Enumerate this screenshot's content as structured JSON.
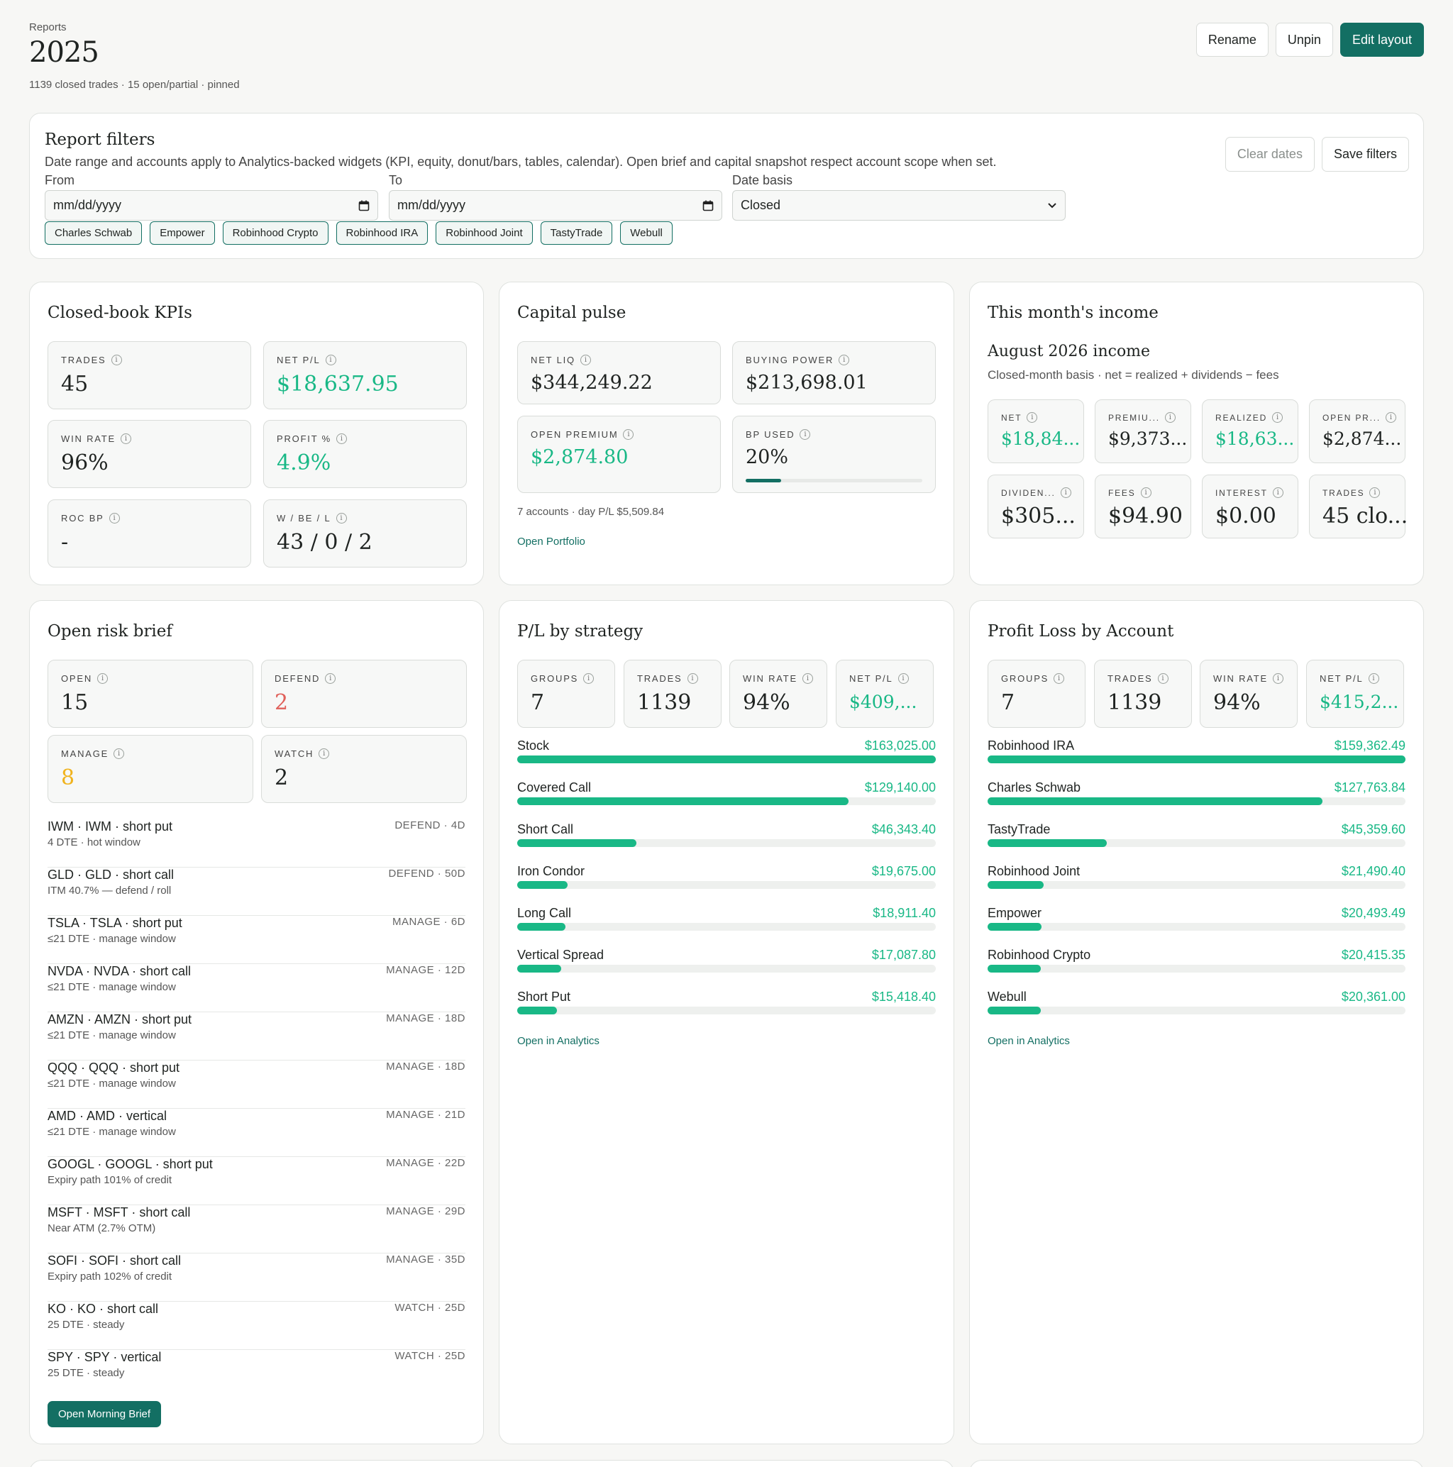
{
  "header": {
    "breadcrumb": "Reports",
    "title": "2025",
    "subline": "1139 closed trades · 15 open/partial · pinned",
    "buttons": {
      "rename": "Rename",
      "unpin": "Unpin",
      "edit_layout": "Edit layout"
    }
  },
  "filters": {
    "title": "Report filters",
    "description": "Date range and accounts apply to Analytics-backed widgets (KPI, equity, donut/bars, tables, calendar). Open brief and capital snapshot respect account scope when set.",
    "from_label": "From",
    "to_label": "To",
    "basis_label": "Date basis",
    "from_placeholder": "mm/dd/yyyy",
    "to_placeholder": "mm/dd/yyyy",
    "basis_value": "Closed",
    "clear_label": "Clear dates",
    "save_label": "Save filters",
    "accounts": [
      "Charles Schwab",
      "Empower",
      "Robinhood Crypto",
      "Robinhood IRA",
      "Robinhood Joint",
      "TastyTrade",
      "Webull"
    ]
  },
  "kpis": {
    "title": "Closed-book KPIs",
    "tiles": [
      {
        "label": "TRADES",
        "value": "45"
      },
      {
        "label": "NET P/L",
        "value": "$18,637.95"
      },
      {
        "label": "WIN RATE",
        "value": "96%"
      },
      {
        "label": "PROFIT %",
        "value": "4.9%"
      },
      {
        "label": "ROC BP",
        "value": "-"
      },
      {
        "label": "W / BE / L",
        "value": "43 / 0 / 2"
      }
    ]
  },
  "capital": {
    "title": "Capital pulse",
    "tiles": [
      {
        "label": "NET LIQ",
        "value": "$344,249.22"
      },
      {
        "label": "BUYING POWER",
        "value": "$213,698.01"
      },
      {
        "label": "OPEN PREMIUM",
        "value": "$2,874.80"
      },
      {
        "label": "BP USED",
        "value": "20%"
      }
    ],
    "bp_used_fraction": 0.2,
    "footnote": "7 accounts · day P/L $5,509.84",
    "link": "Open Portfolio"
  },
  "income": {
    "title": "This month's income",
    "subtitle": "August 2026 income",
    "basis": "Closed-month basis · net = realized + dividends − fees",
    "tiles": [
      {
        "label": "NET",
        "value": "$18,84..."
      },
      {
        "label": "PREMIU...",
        "value": "$9,373..."
      },
      {
        "label": "REALIZED",
        "value": "$18,63..."
      },
      {
        "label": "OPEN PR...",
        "value": "$2,874..."
      },
      {
        "label": "DIVIDEN...",
        "value": "$305..."
      },
      {
        "label": "FEES",
        "value": "$94.90"
      },
      {
        "label": "INTEREST",
        "value": "$0.00"
      },
      {
        "label": "TRADES",
        "value": "45 clo..."
      }
    ]
  },
  "risk": {
    "title": "Open risk brief",
    "tiles": [
      {
        "label": "OPEN",
        "value": "15"
      },
      {
        "label": "DEFEND",
        "value": "2"
      },
      {
        "label": "MANAGE",
        "value": "8"
      },
      {
        "label": "WATCH",
        "value": "2"
      }
    ],
    "items": [
      {
        "title": "IWM · IWM · short put",
        "sub": "4 DTE · hot window",
        "badge": "DEFEND · 4D"
      },
      {
        "title": "GLD · GLD · short call",
        "sub": "ITM 40.7% — defend / roll",
        "badge": "DEFEND · 50D"
      },
      {
        "title": "TSLA · TSLA · short put",
        "sub": "≤21 DTE · manage window",
        "badge": "MANAGE · 6D"
      },
      {
        "title": "NVDA · NVDA · short call",
        "sub": "≤21 DTE · manage window",
        "badge": "MANAGE · 12D"
      },
      {
        "title": "AMZN · AMZN · short put",
        "sub": "≤21 DTE · manage window",
        "badge": "MANAGE · 18D"
      },
      {
        "title": "QQQ · QQQ · short put",
        "sub": "≤21 DTE · manage window",
        "badge": "MANAGE · 18D"
      },
      {
        "title": "AMD · AMD · vertical",
        "sub": "≤21 DTE · manage window",
        "badge": "MANAGE · 21D"
      },
      {
        "title": "GOOGL · GOOGL · short put",
        "sub": "Expiry path 101% of credit",
        "badge": "MANAGE · 22D"
      },
      {
        "title": "MSFT · MSFT · short call",
        "sub": "Near ATM (2.7% OTM)",
        "badge": "MANAGE · 29D"
      },
      {
        "title": "SOFI · SOFI · short call",
        "sub": "Expiry path 102% of credit",
        "badge": "MANAGE · 35D"
      },
      {
        "title": "KO · KO · short call",
        "sub": "25 DTE · steady",
        "badge": "WATCH · 25D"
      },
      {
        "title": "SPY · SPY · vertical",
        "sub": "25 DTE · steady",
        "badge": "WATCH · 25D"
      }
    ],
    "button": "Open Morning Brief"
  },
  "strategy": {
    "title": "P/L by strategy",
    "tiles": [
      {
        "label": "GROUPS",
        "value": "7"
      },
      {
        "label": "TRADES",
        "value": "1139"
      },
      {
        "label": "WIN RATE",
        "value": "94%"
      },
      {
        "label": "NET P/L",
        "value": "$409,..."
      }
    ],
    "bars": [
      {
        "name": "Stock",
        "value": 163025.0,
        "label": "$163,025.00"
      },
      {
        "name": "Covered Call",
        "value": 129140.0,
        "label": "$129,140.00"
      },
      {
        "name": "Short Call",
        "value": 46343.4,
        "label": "$46,343.40"
      },
      {
        "name": "Iron Condor",
        "value": 19675.0,
        "label": "$19,675.00"
      },
      {
        "name": "Long Call",
        "value": 18911.4,
        "label": "$18,911.40"
      },
      {
        "name": "Vertical Spread",
        "value": 17087.8,
        "label": "$17,087.80"
      },
      {
        "name": "Short Put",
        "value": 15418.4,
        "label": "$15,418.40"
      }
    ],
    "link": "Open in Analytics"
  },
  "account": {
    "title": "Profit Loss by Account",
    "tiles": [
      {
        "label": "GROUPS",
        "value": "7"
      },
      {
        "label": "TRADES",
        "value": "1139"
      },
      {
        "label": "WIN RATE",
        "value": "94%"
      },
      {
        "label": "NET P/L",
        "value": "$415,2..."
      }
    ],
    "bars": [
      {
        "name": "Robinhood IRA",
        "value": 159362.49,
        "label": "$159,362.49"
      },
      {
        "name": "Charles Schwab",
        "value": 127763.84,
        "label": "$127,763.84"
      },
      {
        "name": "TastyTrade",
        "value": 45359.6,
        "label": "$45,359.60"
      },
      {
        "name": "Robinhood Joint",
        "value": 21490.4,
        "label": "$21,490.40"
      },
      {
        "name": "Empower",
        "value": 20493.49,
        "label": "$20,493.49"
      },
      {
        "name": "Robinhood Crypto",
        "value": 20415.35,
        "label": "$20,415.35"
      },
      {
        "name": "Webull",
        "value": 20361.0,
        "label": "$20,361.00"
      }
    ],
    "link": "Open in Analytics"
  },
  "colors": {
    "accent": "#136f63",
    "positive": "#19b886",
    "defend": "#e0605a",
    "manage": "#f0b31e"
  }
}
